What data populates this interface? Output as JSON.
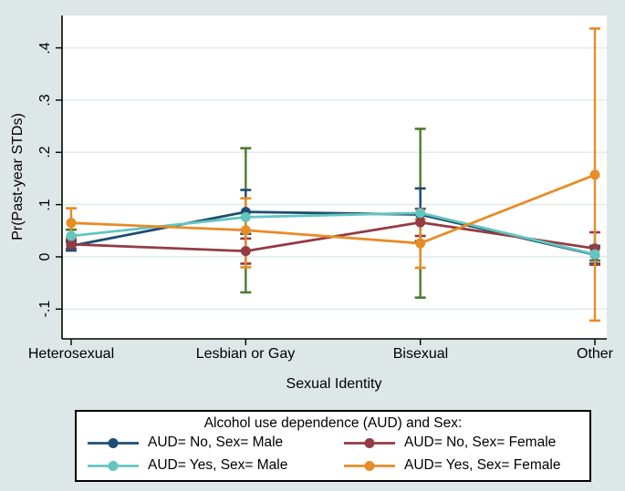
{
  "chart_data": {
    "type": "line",
    "title": "",
    "xlabel": "Sexual Identity",
    "ylabel": "Pr(Past-year STDs)",
    "categories": [
      "Heterosexual",
      "Lesbian or Gay",
      "Bisexual",
      "Other"
    ],
    "ytick_labels": [
      ".4",
      ".3",
      ".2",
      ".1",
      "0",
      "-.1"
    ],
    "ytick_values": [
      0.4,
      0.3,
      0.2,
      0.1,
      0,
      -0.1
    ],
    "ylim": [
      -0.157,
      0.462
    ],
    "grid": true,
    "error_bars": true,
    "legend": {
      "title": "Alcohol use dependence (AUD) and Sex:",
      "position": "bottom-outside"
    },
    "series": [
      {
        "name": "AUD= No, Sex= Male",
        "color": "#1d4e73",
        "ci_color": "#1d4e73",
        "values": [
          0.021,
          0.086,
          0.081,
          0.004
        ],
        "ci_low": [
          0.012,
          0.044,
          0.03,
          -0.013
        ],
        "ci_high": [
          0.03,
          0.128,
          0.131,
          0.021
        ]
      },
      {
        "name": "AUD= No, Sex= Female",
        "color": "#943b44",
        "ci_color": "#943b44",
        "values": [
          0.024,
          0.011,
          0.066,
          0.016
        ],
        "ci_low": [
          0.015,
          -0.013,
          0.04,
          -0.015
        ],
        "ci_high": [
          0.033,
          0.035,
          0.092,
          0.047
        ]
      },
      {
        "name": "AUD= Yes, Sex= Male",
        "color": "#63c5bf",
        "ci_color": "#4c7a2e",
        "values": [
          0.04,
          0.076,
          0.084,
          0.005
        ],
        "ci_low": [
          0.028,
          -0.068,
          -0.078,
          -0.007
        ],
        "ci_high": [
          0.052,
          0.208,
          0.245,
          0.017
        ]
      },
      {
        "name": "AUD= Yes, Sex= Female",
        "color": "#e78c27",
        "ci_color": "#e78c27",
        "values": [
          0.065,
          0.051,
          0.026,
          0.157
        ],
        "ci_low": [
          0.037,
          -0.02,
          -0.021,
          -0.122
        ],
        "ci_high": [
          0.093,
          0.112,
          0.072,
          0.437
        ]
      }
    ],
    "ci_draw_order": [
      2,
      0,
      1,
      3
    ]
  },
  "colors": {
    "background": "#dde7e8",
    "plot_background": "#ffffff",
    "gridline": "#e2ebed",
    "axis": "#000000",
    "legend_border": "#000000",
    "navy": "#1d4e73",
    "maroon": "#943b44",
    "teal": "#63c5bf",
    "orange": "#e78c27",
    "ci_green": "#4c7a2e"
  }
}
